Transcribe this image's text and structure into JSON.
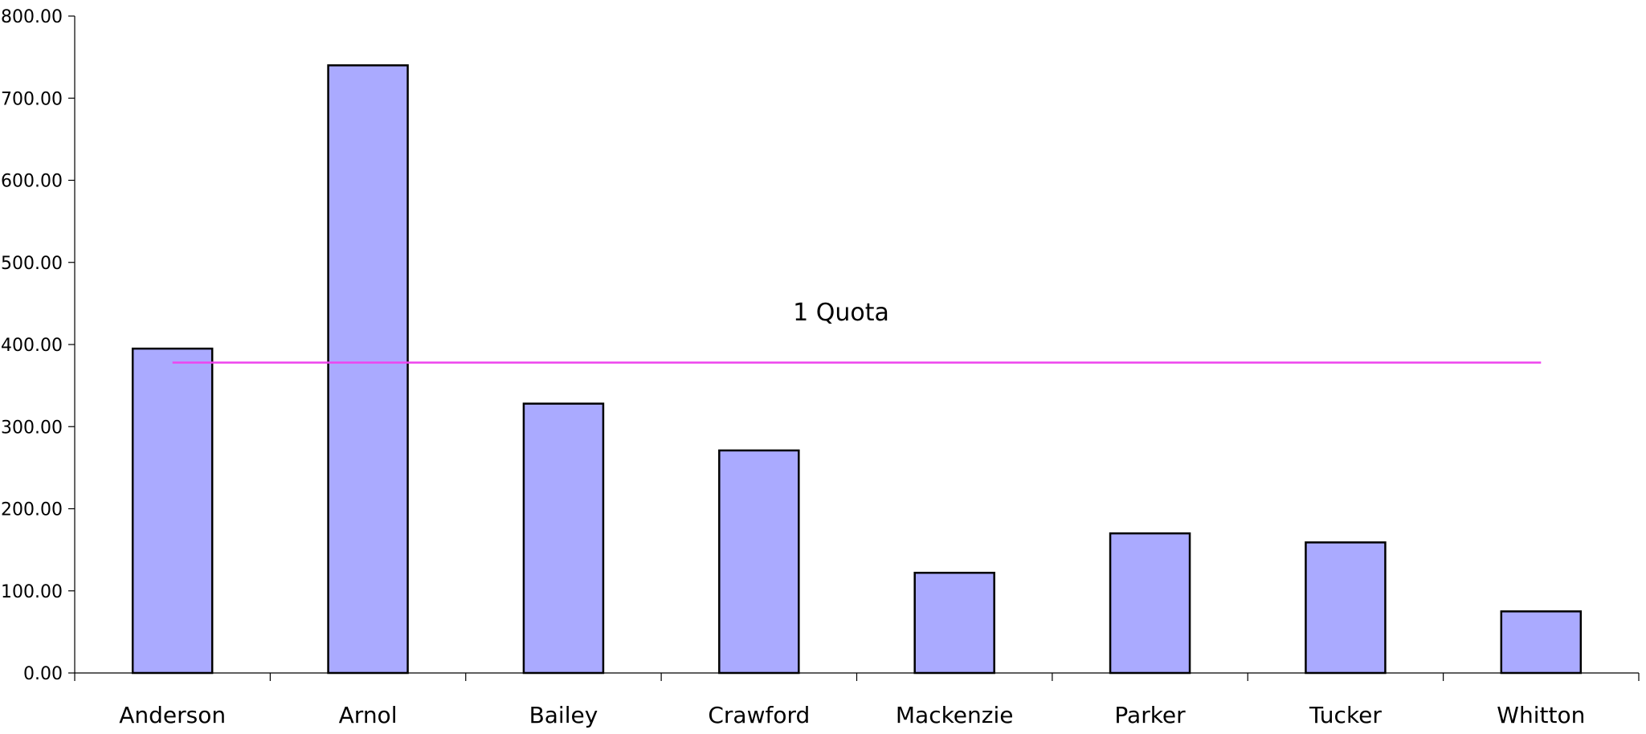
{
  "chart_data": {
    "type": "bar",
    "title": "",
    "xlabel": "",
    "ylabel": "",
    "categories": [
      "Anderson",
      "Arnol",
      "Bailey",
      "Crawford",
      "Mackenzie",
      "Parker",
      "Tucker",
      "Whitton"
    ],
    "values": [
      395,
      740,
      328,
      271,
      122,
      170,
      159,
      75
    ],
    "ylim": [
      0,
      800
    ],
    "yticks": [
      "0.00",
      "100.00",
      "200.00",
      "300.00",
      "400.00",
      "500.00",
      "600.00",
      "700.00",
      "800.00"
    ],
    "grid": false,
    "legend": "none",
    "bar_color": "#aaaaff",
    "bar_stroke": "#000000",
    "reference_line": {
      "label": "1 Quota",
      "value": 378,
      "color": "#ee44ee"
    }
  }
}
